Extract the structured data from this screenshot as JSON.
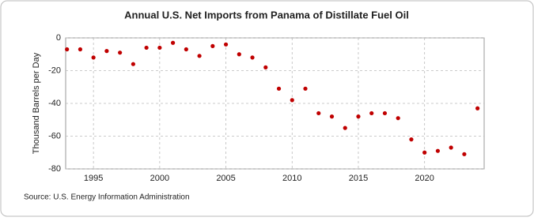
{
  "chart_data": {
    "type": "scatter",
    "title": "Annual U.S. Net Imports from Panama of Distillate Fuel Oil",
    "y_label": "Thousand Barrels per Day",
    "source": "Source: U.S. Energy Information Administration",
    "color": "#c00000",
    "x": [
      1993,
      1994,
      1995,
      1996,
      1997,
      1998,
      1999,
      2000,
      2001,
      2002,
      2003,
      2004,
      2005,
      2006,
      2007,
      2008,
      2009,
      2010,
      2011,
      2012,
      2013,
      2014,
      2015,
      2016,
      2017,
      2018,
      2019,
      2020,
      2021,
      2022,
      2023,
      2024
    ],
    "values": [
      -7,
      -7,
      -12,
      -8,
      -9,
      -16,
      -6,
      -6,
      -3,
      -7,
      -11,
      -5,
      -4,
      -10,
      -12,
      -18,
      -31,
      -38,
      -31,
      -46,
      -48,
      -55,
      -48,
      -46,
      -46,
      -49,
      -62,
      -70,
      -69,
      -67,
      -71,
      -43
    ],
    "xlim": [
      1992.9,
      2024.5
    ],
    "xticks": [
      1995,
      2000,
      2005,
      2010,
      2015,
      2020
    ],
    "ylim": [
      -80,
      0
    ],
    "yticks": [
      0,
      -20,
      -40,
      -60,
      -80
    ],
    "grid": true
  }
}
